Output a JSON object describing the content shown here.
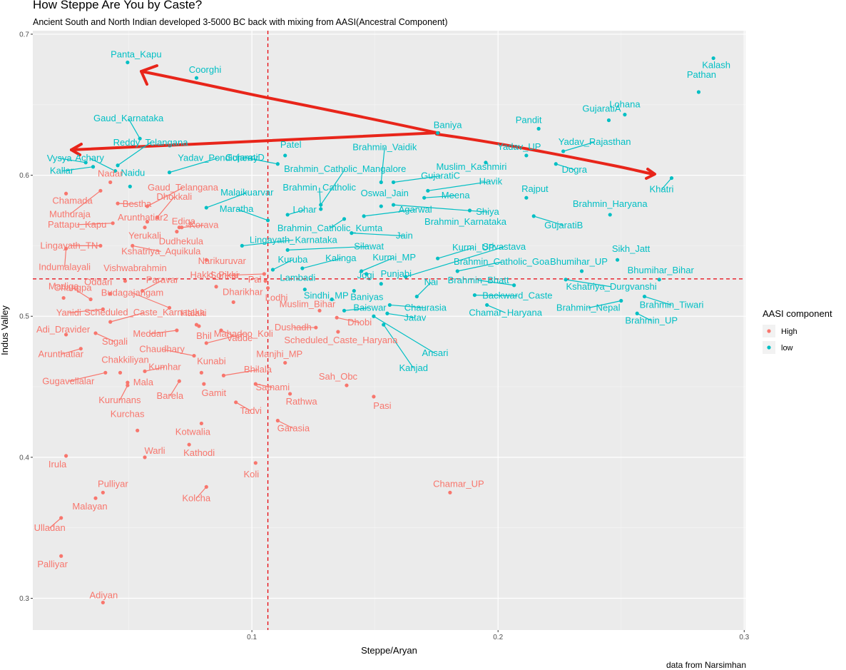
{
  "chart_data": {
    "type": "scatter",
    "title": "How Steppe Are You by Caste?",
    "subtitle": "Ancient South and North Indian developed 3-5000 BC back with mixing from AASI(Ancestral Component)",
    "caption": "data from Narsimhan",
    "xlabel": "Steppe/Aryan",
    "ylabel": "Indus Valley",
    "xlim": [
      0.011,
      0.3005
    ],
    "ylim": [
      0.2775,
      0.7025
    ],
    "xticks": [
      "0.1",
      "0.2",
      "0.3"
    ],
    "yticks": [
      "0.3",
      "0.4",
      "0.5",
      "0.6",
      "0.7"
    ],
    "grid": true,
    "vlines": [
      0.1065
    ],
    "hlines": [
      0.5265
    ],
    "legend": {
      "title": "AASI component",
      "position": "right",
      "entries": [
        {
          "name": "High",
          "color": "#F8766D"
        },
        {
          "name": "low",
          "color": "#00BFC4"
        }
      ]
    },
    "colors": {
      "High": "#F8766D",
      "low": "#00BFC4",
      "refline": "#E8000B",
      "arrow": "#E8251A"
    },
    "points": [
      {
        "label": "Kalash",
        "x": 0.2875,
        "y": 0.683,
        "group": "low"
      },
      {
        "label": "Pathan",
        "x": 0.2815,
        "y": 0.659,
        "group": "low"
      },
      {
        "label": "Lohana",
        "x": 0.2515,
        "y": 0.643,
        "group": "low"
      },
      {
        "label": "GujaratiA",
        "x": 0.245,
        "y": 0.639,
        "group": "low"
      },
      {
        "label": "Pandit",
        "x": 0.2165,
        "y": 0.633,
        "group": "low"
      },
      {
        "label": "Baniya",
        "x": 0.1755,
        "y": 0.63,
        "group": "low"
      },
      {
        "label": "Yadav_Rajasthan",
        "x": 0.2265,
        "y": 0.617,
        "group": "low"
      },
      {
        "label": "Yadav_UP",
        "x": 0.2115,
        "y": 0.614,
        "group": "low"
      },
      {
        "label": "Muslim_Kashmiri",
        "x": 0.195,
        "y": 0.609,
        "group": "low"
      },
      {
        "label": "Dogra",
        "x": 0.2235,
        "y": 0.608,
        "group": "low"
      },
      {
        "label": "Khatri",
        "x": 0.2705,
        "y": 0.598,
        "group": "low"
      },
      {
        "label": "Rajput",
        "x": 0.2115,
        "y": 0.584,
        "group": "low"
      },
      {
        "label": "Brahmin_Haryana",
        "x": 0.2455,
        "y": 0.572,
        "group": "low"
      },
      {
        "label": "GujaratiB",
        "x": 0.2145,
        "y": 0.571,
        "group": "low"
      },
      {
        "label": "Brahmin_Karnataka",
        "x": 0.1885,
        "y": 0.575,
        "group": "low"
      },
      {
        "label": "Havik",
        "x": 0.1715,
        "y": 0.589,
        "group": "low"
      },
      {
        "label": "Meena",
        "x": 0.17,
        "y": 0.584,
        "group": "low"
      },
      {
        "label": "Shiya",
        "x": 0.1575,
        "y": 0.579,
        "group": "low"
      },
      {
        "label": "GujaratiC",
        "x": 0.1575,
        "y": 0.595,
        "group": "low"
      },
      {
        "label": "Oswal_Jain",
        "x": 0.1525,
        "y": 0.578,
        "group": "low"
      },
      {
        "label": "Brahmin_Vaidik",
        "x": 0.1525,
        "y": 0.595,
        "group": "low"
      },
      {
        "label": "Agarwal",
        "x": 0.1455,
        "y": 0.571,
        "group": "low"
      },
      {
        "label": "Brahmin_Catholic_Kumta",
        "x": 0.1375,
        "y": 0.569,
        "group": "low"
      },
      {
        "label": "Jain",
        "x": 0.1405,
        "y": 0.559,
        "group": "low"
      },
      {
        "label": "Brahmin_Catholic",
        "x": 0.128,
        "y": 0.576,
        "group": "low"
      },
      {
        "label": "Brahmin_Catholic_Mangalore",
        "x": 0.128,
        "y": 0.579,
        "group": "low"
      },
      {
        "label": "Lohar",
        "x": 0.1145,
        "y": 0.572,
        "group": "low"
      },
      {
        "label": "Patel",
        "x": 0.1135,
        "y": 0.614,
        "group": "low"
      },
      {
        "label": "GujaratiD",
        "x": 0.1105,
        "y": 0.608,
        "group": "low"
      },
      {
        "label": "Yadav_Pondicherry",
        "x": 0.0665,
        "y": 0.602,
        "group": "low"
      },
      {
        "label": "Gaud_Karnataka",
        "x": 0.0545,
        "y": 0.626,
        "group": "low"
      },
      {
        "label": "Reddy_Telangana",
        "x": 0.0455,
        "y": 0.607,
        "group": "low"
      },
      {
        "label": "Naidu",
        "x": 0.0505,
        "y": 0.592,
        "group": "low"
      },
      {
        "label": "Achary",
        "x": 0.0445,
        "y": 0.603,
        "group": "low"
      },
      {
        "label": "Vysya",
        "x": 0.0325,
        "y": 0.609,
        "group": "low"
      },
      {
        "label": "Kallar",
        "x": 0.0355,
        "y": 0.606,
        "group": "low"
      },
      {
        "label": "Panta_Kapu",
        "x": 0.0495,
        "y": 0.68,
        "group": "low"
      },
      {
        "label": "Coorghi",
        "x": 0.0775,
        "y": 0.669,
        "group": "low"
      },
      {
        "label": "Malaikuarvar",
        "x": 0.0815,
        "y": 0.577,
        "group": "low"
      },
      {
        "label": "Maratha",
        "x": 0.1065,
        "y": 0.568,
        "group": "low"
      },
      {
        "label": "Brahmin_Catholic_Kumta_b",
        "x": 0.0975,
        "y": 0.564,
        "group": "low",
        "hidden": true
      },
      {
        "label": "Lingayath_Karnataka",
        "x": 0.096,
        "y": 0.55,
        "group": "low"
      },
      {
        "label": "Silawat",
        "x": 0.1145,
        "y": 0.547,
        "group": "low"
      },
      {
        "label": "Kurmi_UP",
        "x": 0.1755,
        "y": 0.541,
        "group": "low"
      },
      {
        "label": "Kurmi_MP",
        "x": 0.1445,
        "y": 0.532,
        "group": "low"
      },
      {
        "label": "Srivastava",
        "x": 0.1625,
        "y": 0.528,
        "group": "low"
      },
      {
        "label": "Kuruba",
        "x": 0.1085,
        "y": 0.533,
        "group": "low"
      },
      {
        "label": "Kalinga",
        "x": 0.1205,
        "y": 0.534,
        "group": "low"
      },
      {
        "label": "Punjabi",
        "x": 0.1525,
        "y": 0.523,
        "group": "low"
      },
      {
        "label": "Jogi",
        "x": 0.1465,
        "y": 0.53,
        "group": "low"
      },
      {
        "label": "Lambadi",
        "x": 0.1215,
        "y": 0.519,
        "group": "low"
      },
      {
        "label": "Sindhi_MP",
        "x": 0.1325,
        "y": 0.512,
        "group": "low"
      },
      {
        "label": "Baniyas",
        "x": 0.1415,
        "y": 0.518,
        "group": "low"
      },
      {
        "label": "Nai",
        "x": 0.167,
        "y": 0.514,
        "group": "low"
      },
      {
        "label": "Brahmin_Catholic_Goa",
        "x": 0.1835,
        "y": 0.532,
        "group": "low"
      },
      {
        "label": "Brahmin_Bhatt",
        "x": 0.2065,
        "y": 0.522,
        "group": "low"
      },
      {
        "label": "Bhumihar_UP",
        "x": 0.234,
        "y": 0.532,
        "group": "low"
      },
      {
        "label": "Sikh_Jatt",
        "x": 0.2485,
        "y": 0.54,
        "group": "low"
      },
      {
        "label": "Bhumihar_Bihar",
        "x": 0.2655,
        "y": 0.526,
        "group": "low"
      },
      {
        "label": "Kshatriya_Durgvanshi",
        "x": 0.2275,
        "y": 0.526,
        "group": "low"
      },
      {
        "label": "Backward_Caste",
        "x": 0.1905,
        "y": 0.515,
        "group": "low"
      },
      {
        "label": "Chamar_Haryana",
        "x": 0.1955,
        "y": 0.508,
        "group": "low"
      },
      {
        "label": "Brahmin_Tiwari",
        "x": 0.2595,
        "y": 0.514,
        "group": "low"
      },
      {
        "label": "Brahmin_Nepal",
        "x": 0.25,
        "y": 0.511,
        "group": "low"
      },
      {
        "label": "Brahmin_UP",
        "x": 0.2565,
        "y": 0.502,
        "group": "low"
      },
      {
        "label": "Chaurasia",
        "x": 0.156,
        "y": 0.508,
        "group": "low"
      },
      {
        "label": "Baiswar",
        "x": 0.1375,
        "y": 0.504,
        "group": "low"
      },
      {
        "label": "Jatav",
        "x": 0.155,
        "y": 0.502,
        "group": "low"
      },
      {
        "label": "Ansari",
        "x": 0.1495,
        "y": 0.5,
        "group": "low"
      },
      {
        "label": "Kanjad",
        "x": 0.1535,
        "y": 0.494,
        "group": "low"
      },
      {
        "label": "Muslim_Bihar",
        "x": 0.1375,
        "y": 0.504,
        "group": "low",
        "hidden": true
      },
      {
        "label": "Nadar",
        "x": 0.0425,
        "y": 0.595,
        "group": "High"
      },
      {
        "label": "Chamada",
        "x": 0.0245,
        "y": 0.587,
        "group": "High"
      },
      {
        "label": "Muthuraja",
        "x": 0.0385,
        "y": 0.589,
        "group": "High"
      },
      {
        "label": "Bestha",
        "x": 0.0455,
        "y": 0.58,
        "group": "High"
      },
      {
        "label": "Gaud_Telangana",
        "x": 0.0575,
        "y": 0.578,
        "group": "High"
      },
      {
        "label": "Dhokkali",
        "x": 0.0615,
        "y": 0.57,
        "group": "High"
      },
      {
        "label": "Arunthatiar2",
        "x": 0.0575,
        "y": 0.567,
        "group": "High"
      },
      {
        "label": "Ediga",
        "x": 0.0705,
        "y": 0.563,
        "group": "High"
      },
      {
        "label": "Korava",
        "x": 0.0715,
        "y": 0.563,
        "group": "High"
      },
      {
        "label": "Pattapu_Kapu",
        "x": 0.0435,
        "y": 0.566,
        "group": "High"
      },
      {
        "label": "Yerukali",
        "x": 0.0565,
        "y": 0.563,
        "group": "High"
      },
      {
        "label": "Dudhekula",
        "x": 0.0695,
        "y": 0.56,
        "group": "High"
      },
      {
        "label": "Lingayath_TN",
        "x": 0.0385,
        "y": 0.55,
        "group": "High"
      },
      {
        "label": "Indumalayali",
        "x": 0.0245,
        "y": 0.548,
        "group": "High"
      },
      {
        "label": "Kshatriya_Aquikula",
        "x": 0.0515,
        "y": 0.55,
        "group": "High"
      },
      {
        "label": "Narikuruvar",
        "x": 0.0815,
        "y": 0.54,
        "group": "High"
      },
      {
        "label": "Vishwabrahmin",
        "x": 0.0485,
        "y": 0.525,
        "group": "High"
      },
      {
        "label": "Sonkar",
        "x": 0.105,
        "y": 0.53,
        "group": "High"
      },
      {
        "label": "Pal",
        "x": 0.1055,
        "y": 0.525,
        "group": "High"
      },
      {
        "label": "Lodhi",
        "x": 0.1065,
        "y": 0.52,
        "group": "High"
      },
      {
        "label": "Madiga",
        "x": 0.0235,
        "y": 0.513,
        "group": "High"
      },
      {
        "label": "Oddari",
        "x": 0.0425,
        "y": 0.516,
        "group": "High"
      },
      {
        "label": "Paravar",
        "x": 0.0555,
        "y": 0.518,
        "group": "High"
      },
      {
        "label": "Hakki_Pikki",
        "x": 0.0855,
        "y": 0.521,
        "group": "High"
      },
      {
        "label": "Changpa",
        "x": 0.0345,
        "y": 0.512,
        "group": "High"
      },
      {
        "label": "Budagajangam",
        "x": 0.0665,
        "y": 0.506,
        "group": "High"
      },
      {
        "label": "Dharikhar",
        "x": 0.0925,
        "y": 0.51,
        "group": "High"
      },
      {
        "label": "Yanidi",
        "x": 0.0395,
        "y": 0.505,
        "group": "High"
      },
      {
        "label": "Scheduled_Caste_Karnataka",
        "x": 0.0425,
        "y": 0.496,
        "group": "High"
      },
      {
        "label": "Halaki",
        "x": 0.0775,
        "y": 0.494,
        "group": "High"
      },
      {
        "label": "Muslim_Bihar",
        "x": 0.1275,
        "y": 0.504,
        "group": "High"
      },
      {
        "label": "Dushadh",
        "x": 0.126,
        "y": 0.492,
        "group": "High"
      },
      {
        "label": "Dhobi",
        "x": 0.1345,
        "y": 0.499,
        "group": "High"
      },
      {
        "label": "Meddari",
        "x": 0.0695,
        "y": 0.49,
        "group": "High"
      },
      {
        "label": "Bhil",
        "x": 0.0785,
        "y": 0.493,
        "group": "High"
      },
      {
        "label": "Vadde",
        "x": 0.0875,
        "y": 0.49,
        "group": "High"
      },
      {
        "label": "Scheduled_Caste_Haryana",
        "x": 0.135,
        "y": 0.489,
        "group": "High"
      },
      {
        "label": "Adi_Dravider",
        "x": 0.0245,
        "y": 0.487,
        "group": "High"
      },
      {
        "label": "Sugali",
        "x": 0.0365,
        "y": 0.488,
        "group": "High"
      },
      {
        "label": "Chaudhary",
        "x": 0.0765,
        "y": 0.472,
        "group": "High"
      },
      {
        "label": "Arunthatiar",
        "x": 0.0305,
        "y": 0.477,
        "group": "High"
      },
      {
        "label": "Mahadeo_Koli",
        "x": 0.0815,
        "y": 0.481,
        "group": "High"
      },
      {
        "label": "Manjhi_MP",
        "x": 0.1135,
        "y": 0.467,
        "group": "High"
      },
      {
        "label": "Chakkiliyan",
        "x": 0.0465,
        "y": 0.46,
        "group": "High"
      },
      {
        "label": "Kumhar",
        "x": 0.0565,
        "y": 0.461,
        "group": "High"
      },
      {
        "label": "Kunabi",
        "x": 0.0795,
        "y": 0.46,
        "group": "High"
      },
      {
        "label": "Bhilala",
        "x": 0.0885,
        "y": 0.458,
        "group": "High"
      },
      {
        "label": "Gugavellalar",
        "x": 0.0405,
        "y": 0.46,
        "group": "High"
      },
      {
        "label": "Mala",
        "x": 0.0495,
        "y": 0.453,
        "group": "High"
      },
      {
        "label": "Satnami",
        "x": 0.1015,
        "y": 0.452,
        "group": "High"
      },
      {
        "label": "Sah_Obc",
        "x": 0.1385,
        "y": 0.451,
        "group": "High"
      },
      {
        "label": "Barela",
        "x": 0.0705,
        "y": 0.454,
        "group": "High"
      },
      {
        "label": "Gamit",
        "x": 0.0805,
        "y": 0.452,
        "group": "High"
      },
      {
        "label": "Kurumans",
        "x": 0.0495,
        "y": 0.451,
        "group": "High"
      },
      {
        "label": "Rathwa",
        "x": 0.1155,
        "y": 0.445,
        "group": "High"
      },
      {
        "label": "Pasi",
        "x": 0.1495,
        "y": 0.443,
        "group": "High"
      },
      {
        "label": "Tadvi",
        "x": 0.0935,
        "y": 0.439,
        "group": "High"
      },
      {
        "label": "Garasia",
        "x": 0.1105,
        "y": 0.426,
        "group": "High"
      },
      {
        "label": "Kurchas",
        "x": 0.0535,
        "y": 0.419,
        "group": "High"
      },
      {
        "label": "Kotwalia",
        "x": 0.0795,
        "y": 0.424,
        "group": "High"
      },
      {
        "label": "Kathodi",
        "x": 0.0745,
        "y": 0.409,
        "group": "High"
      },
      {
        "label": "Warli",
        "x": 0.0565,
        "y": 0.4,
        "group": "High"
      },
      {
        "label": "Irula",
        "x": 0.0245,
        "y": 0.401,
        "group": "High"
      },
      {
        "label": "Koli",
        "x": 0.1015,
        "y": 0.396,
        "group": "High"
      },
      {
        "label": "Chamar_UP",
        "x": 0.1805,
        "y": 0.375,
        "group": "High"
      },
      {
        "label": "Kolcha",
        "x": 0.0815,
        "y": 0.379,
        "group": "High"
      },
      {
        "label": "Pulliyar",
        "x": 0.0395,
        "y": 0.375,
        "group": "High"
      },
      {
        "label": "Malayan",
        "x": 0.0365,
        "y": 0.371,
        "group": "High"
      },
      {
        "label": "Ulladan",
        "x": 0.0225,
        "y": 0.357,
        "group": "High"
      },
      {
        "label": "Palliyar",
        "x": 0.0225,
        "y": 0.33,
        "group": "High"
      },
      {
        "label": "Adiyan",
        "x": 0.0395,
        "y": 0.297,
        "group": "High"
      }
    ]
  }
}
